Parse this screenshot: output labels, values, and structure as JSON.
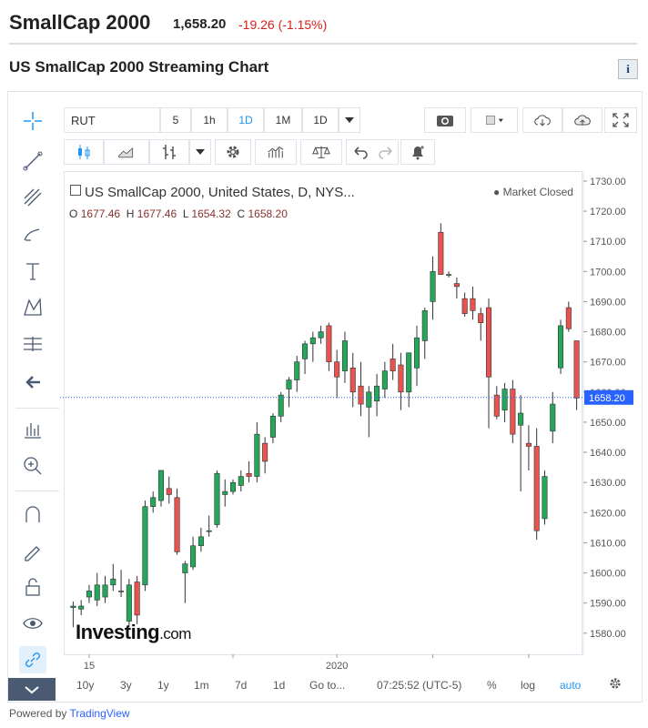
{
  "header": {
    "name": "SmallCap 2000",
    "price": "1,658.20",
    "change": "-19.26 (-1.15%)"
  },
  "subtitle": "US SmallCap 2000 Streaming Chart",
  "info_icon": "i",
  "toolbar": {
    "symbol": "RUT",
    "intervals": [
      "5",
      "1h",
      "1D",
      "1M",
      "1D"
    ],
    "active_interval": "1D"
  },
  "legend": {
    "title": "US SmallCap 2000, United States, D, NYS...",
    "market_status": "Market Closed",
    "ohlc": {
      "o_label": "O",
      "o": "1677.46",
      "h_label": "H",
      "h": "1677.46",
      "l_label": "L",
      "l": "1654.32",
      "c_label": "C",
      "c": "1658.20"
    }
  },
  "watermark": {
    "brand": "Investing",
    "suffix": ".com"
  },
  "bottom_bar": {
    "ranges": [
      "10y",
      "3y",
      "1y",
      "1m",
      "7d",
      "1d",
      "Go to..."
    ],
    "time": "07:25:52 (UTC-5)",
    "percent": "%",
    "log": "log",
    "auto": "auto"
  },
  "footer": {
    "powered_by": "Powered by",
    "provider": "TradingView"
  },
  "colors": {
    "up": "#26a65b",
    "down": "#e8534f",
    "last_price": "#2962ff"
  },
  "icons": [
    "crosshair-icon",
    "trend-line-icon",
    "fib-icon",
    "brush-icon",
    "text-icon",
    "pattern-icon",
    "measure-icon",
    "back-arrow-icon",
    "zoom-out-icon",
    "zoom-in-icon",
    "magnet-icon",
    "lock-drawing-icon",
    "unlock-icon",
    "eye-icon",
    "link-icon",
    "collapse-icon",
    "camera-icon",
    "background-icon",
    "cloud-download-icon",
    "cloud-upload-icon",
    "fullscreen-icon",
    "candles-icon",
    "area-icon",
    "indicator-icon",
    "settings-icon",
    "bar-icon",
    "compare-icon",
    "undo-icon",
    "redo-icon",
    "alert-icon"
  ],
  "chart_data": {
    "type": "candlestick",
    "title": "US SmallCap 2000, United States, D, NYS...",
    "ylim": [
      1573,
      1733
    ],
    "y_ticks": [
      1580,
      1590,
      1600,
      1610,
      1620,
      1630,
      1640,
      1650,
      1660,
      1670,
      1680,
      1690,
      1700,
      1710,
      1720,
      1730
    ],
    "y_tick_labels": [
      "1580.00",
      "1590.00",
      "1600.00",
      "1610.00",
      "1620.00",
      "1630.00",
      "1640.00",
      "1650.00",
      "1660.00",
      "1670.00",
      "1680.00",
      "1690.00",
      "1700.00",
      "1710.00",
      "1720.00",
      "1730.00"
    ],
    "x_labels": [
      {
        "label": "15",
        "index": 2
      },
      {
        "label": "2020",
        "index": 33
      }
    ],
    "last_price": 1658.2,
    "last_price_label": "1658.20",
    "candles": [
      [
        1588.5,
        1590.5,
        1582,
        1589
      ],
      [
        1588,
        1591,
        1586,
        1589
      ],
      [
        1592,
        1596,
        1590,
        1594
      ],
      [
        1591,
        1600,
        1589,
        1596
      ],
      [
        1592,
        1599,
        1590,
        1596
      ],
      [
        1596,
        1603,
        1594,
        1598
      ],
      [
        1594,
        1601,
        1592,
        1594
      ],
      [
        1584,
        1598,
        1582,
        1596
      ],
      [
        1597,
        1599,
        1583,
        1586
      ],
      [
        1596,
        1624,
        1594,
        1622
      ],
      [
        1622,
        1627,
        1620,
        1625
      ],
      [
        1624,
        1634,
        1622,
        1634
      ],
      [
        1628,
        1632,
        1623,
        1626
      ],
      [
        1625,
        1628,
        1606,
        1607
      ],
      [
        1600,
        1604,
        1590,
        1603
      ],
      [
        1602,
        1612,
        1601,
        1609
      ],
      [
        1609,
        1615,
        1607,
        1612
      ],
      [
        1614,
        1619,
        1612,
        1614
      ],
      [
        1616,
        1634,
        1615,
        1633
      ],
      [
        1626,
        1631,
        1622,
        1627
      ],
      [
        1627,
        1631,
        1626,
        1630
      ],
      [
        1629,
        1634,
        1627,
        1632
      ],
      [
        1633,
        1637,
        1630,
        1632
      ],
      [
        1632,
        1650,
        1630,
        1646
      ],
      [
        1643,
        1645,
        1633,
        1637
      ],
      [
        1645,
        1653,
        1643,
        1652
      ],
      [
        1652,
        1660,
        1650,
        1659
      ],
      [
        1661,
        1665,
        1655,
        1664
      ],
      [
        1664,
        1672,
        1660,
        1670
      ],
      [
        1671,
        1677,
        1666,
        1676
      ],
      [
        1676,
        1680,
        1670,
        1678
      ],
      [
        1678,
        1682,
        1676,
        1680
      ],
      [
        1682,
        1683,
        1667,
        1670
      ],
      [
        1670,
        1674,
        1658,
        1665
      ],
      [
        1667,
        1680,
        1663,
        1677
      ],
      [
        1668,
        1673,
        1655,
        1660
      ],
      [
        1662,
        1670,
        1652,
        1656
      ],
      [
        1655,
        1662,
        1645,
        1660
      ],
      [
        1657,
        1666,
        1652,
        1662
      ],
      [
        1661,
        1670,
        1658,
        1667
      ],
      [
        1671,
        1676,
        1664,
        1667
      ],
      [
        1669,
        1673,
        1654,
        1660
      ],
      [
        1660,
        1672,
        1655,
        1673
      ],
      [
        1668,
        1682,
        1662,
        1678
      ],
      [
        1677,
        1688,
        1671,
        1687
      ],
      [
        1690,
        1705,
        1684,
        1700
      ],
      [
        1713,
        1716,
        1700,
        1699
      ],
      [
        1699,
        1700,
        1698,
        1699
      ],
      [
        1696,
        1698,
        1691,
        1695
      ],
      [
        1691,
        1693,
        1685,
        1686
      ],
      [
        1691,
        1695,
        1684,
        1687
      ],
      [
        1686,
        1688,
        1677,
        1683
      ],
      [
        1688,
        1691,
        1648,
        1665
      ],
      [
        1659,
        1662,
        1651,
        1652
      ],
      [
        1654,
        1663,
        1650,
        1661
      ],
      [
        1661,
        1664,
        1643,
        1646
      ],
      [
        1649,
        1659,
        1627,
        1653
      ],
      [
        1643,
        1649,
        1634,
        1642
      ],
      [
        1642,
        1648,
        1611,
        1614
      ],
      [
        1618,
        1634,
        1616,
        1632
      ],
      [
        1647,
        1660,
        1643,
        1656
      ],
      [
        1668,
        1684,
        1666,
        1682
      ],
      [
        1688,
        1690,
        1680,
        1681
      ],
      [
        1677,
        1677,
        1654,
        1658
      ]
    ]
  }
}
